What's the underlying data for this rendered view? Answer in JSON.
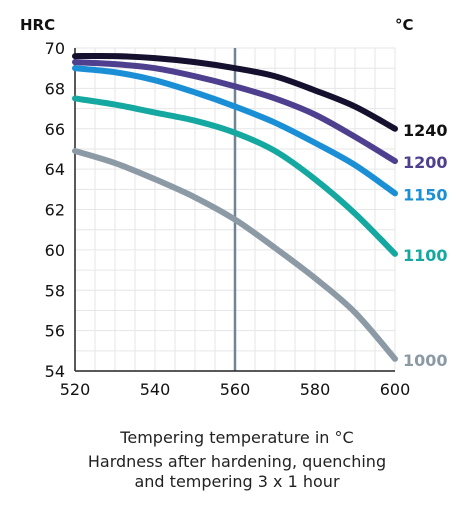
{
  "chart_data": {
    "type": "line",
    "ylabel": "HRC",
    "legend_title": "°C",
    "xlabel": "Tempering temperature in °C",
    "caption_lines": [
      "Hardness after hardening, quenching",
      "and tempering 3 x 1 hour"
    ],
    "xlim": [
      520,
      600
    ],
    "ylim": [
      54,
      70
    ],
    "x_ticks": [
      "520",
      "540",
      "560",
      "580",
      "600"
    ],
    "y_ticks": [
      "54",
      "56",
      "58",
      "60",
      "62",
      "64",
      "66",
      "68",
      "70"
    ],
    "grid": true,
    "reference_line_x": 560,
    "series": [
      {
        "name": "1240",
        "color": "#14102e",
        "x": [
          520,
          530,
          540,
          550,
          560,
          570,
          580,
          590,
          600
        ],
        "y": [
          69.6,
          69.6,
          69.5,
          69.3,
          69.0,
          68.6,
          67.9,
          67.1,
          66.0
        ]
      },
      {
        "name": "1200",
        "color": "#4e3f8f",
        "x": [
          520,
          530,
          540,
          550,
          560,
          570,
          580,
          590,
          600
        ],
        "y": [
          69.3,
          69.2,
          69.0,
          68.6,
          68.1,
          67.5,
          66.7,
          65.6,
          64.4
        ]
      },
      {
        "name": "1150",
        "color": "#1a8fd6",
        "x": [
          520,
          530,
          540,
          550,
          560,
          570,
          580,
          590,
          600
        ],
        "y": [
          69.0,
          68.8,
          68.4,
          67.8,
          67.1,
          66.3,
          65.3,
          64.2,
          62.8
        ]
      },
      {
        "name": "1100",
        "color": "#14a8a0",
        "x": [
          520,
          530,
          540,
          550,
          560,
          570,
          580,
          590,
          600
        ],
        "y": [
          67.5,
          67.2,
          66.8,
          66.4,
          65.8,
          64.9,
          63.5,
          61.8,
          59.8
        ]
      },
      {
        "name": "1000",
        "color": "#8c9aa6",
        "x": [
          520,
          530,
          540,
          550,
          560,
          570,
          580,
          590,
          600
        ],
        "y": [
          64.9,
          64.3,
          63.5,
          62.6,
          61.5,
          60.1,
          58.6,
          56.9,
          54.6
        ]
      }
    ]
  }
}
